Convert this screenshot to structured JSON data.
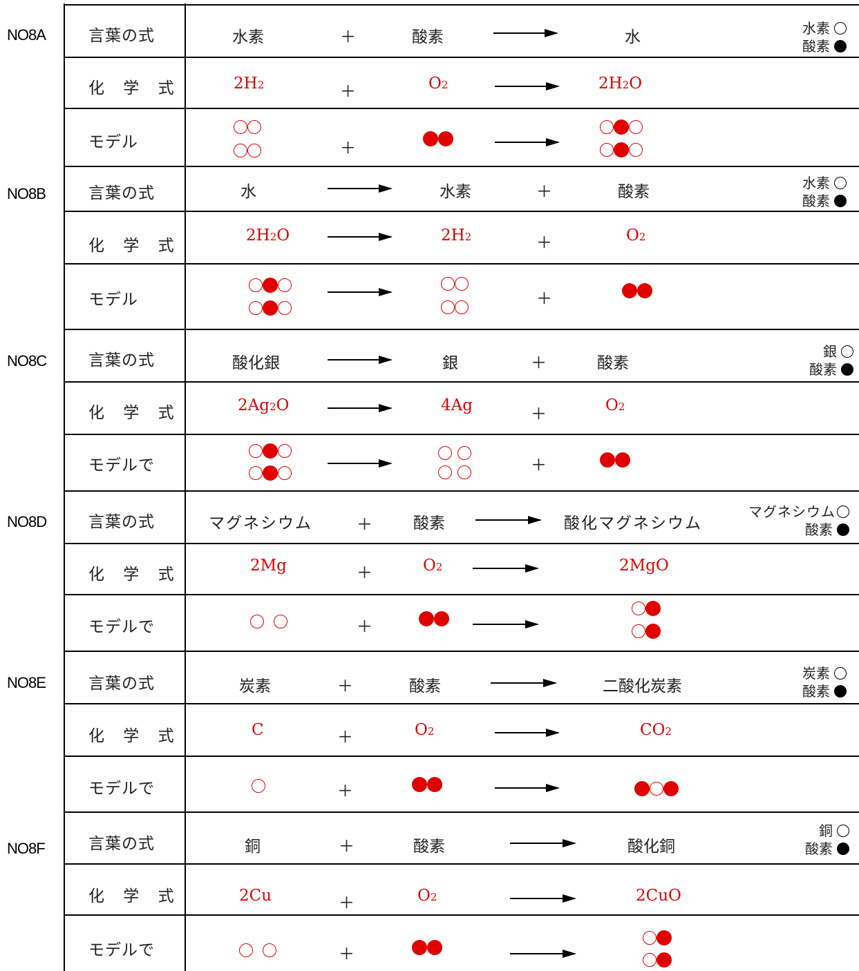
{
  "sections": [
    {
      "id": "NO8A",
      "word": [
        "水素",
        "＋",
        "酸素",
        "水"
      ],
      "formula": [
        "2H",
        "2",
        "＋",
        "O",
        "2",
        "2H",
        "2",
        "O"
      ],
      "legend": [
        "水素",
        "酸素"
      ],
      "model_label": "モデル"
    },
    {
      "id": "NO8B",
      "word": [
        "水",
        "水素",
        "＋",
        "酸素"
      ],
      "formula": [
        "2H",
        "2",
        "O",
        "2H",
        "2",
        "＋",
        "O",
        "2"
      ],
      "legend": [
        "水素",
        "酸素"
      ],
      "model_label": "モデル"
    },
    {
      "id": "NO8C",
      "word": [
        "酸化銀",
        "銀",
        "＋",
        "酸素"
      ],
      "formula": [
        "2Ag",
        "2",
        "O",
        "4Ag",
        "＋",
        "O",
        "2"
      ],
      "legend": [
        "銀",
        "酸素"
      ],
      "model_label": "モデルで"
    },
    {
      "id": "NO8D",
      "word": [
        "マグネシウム",
        "＋",
        "酸素",
        "酸化マグネシウム"
      ],
      "formula": [
        "2Mg",
        "＋",
        "O",
        "2",
        "2MgO"
      ],
      "legend": [
        "マグネシウム",
        "酸素"
      ],
      "model_label": "モデルで"
    },
    {
      "id": "NO8E",
      "word": [
        "炭素",
        "＋",
        "酸素",
        "二酸化炭素"
      ],
      "formula": [
        "C",
        "＋",
        "O",
        "2",
        "CO",
        "2"
      ],
      "legend": [
        "炭素",
        "酸素"
      ],
      "model_label": "モデルで"
    },
    {
      "id": "NO8F",
      "word": [
        "銅",
        "＋",
        "酸素",
        "酸化銅"
      ],
      "formula": [
        "2Cu",
        "＋",
        "O",
        "2",
        "2CuO"
      ],
      "legend": [
        "銅",
        "酸素"
      ],
      "model_label": "モデルで"
    }
  ],
  "row_labels": {
    "word": "言葉の式",
    "formula": "化 学 式"
  },
  "plus": "＋"
}
